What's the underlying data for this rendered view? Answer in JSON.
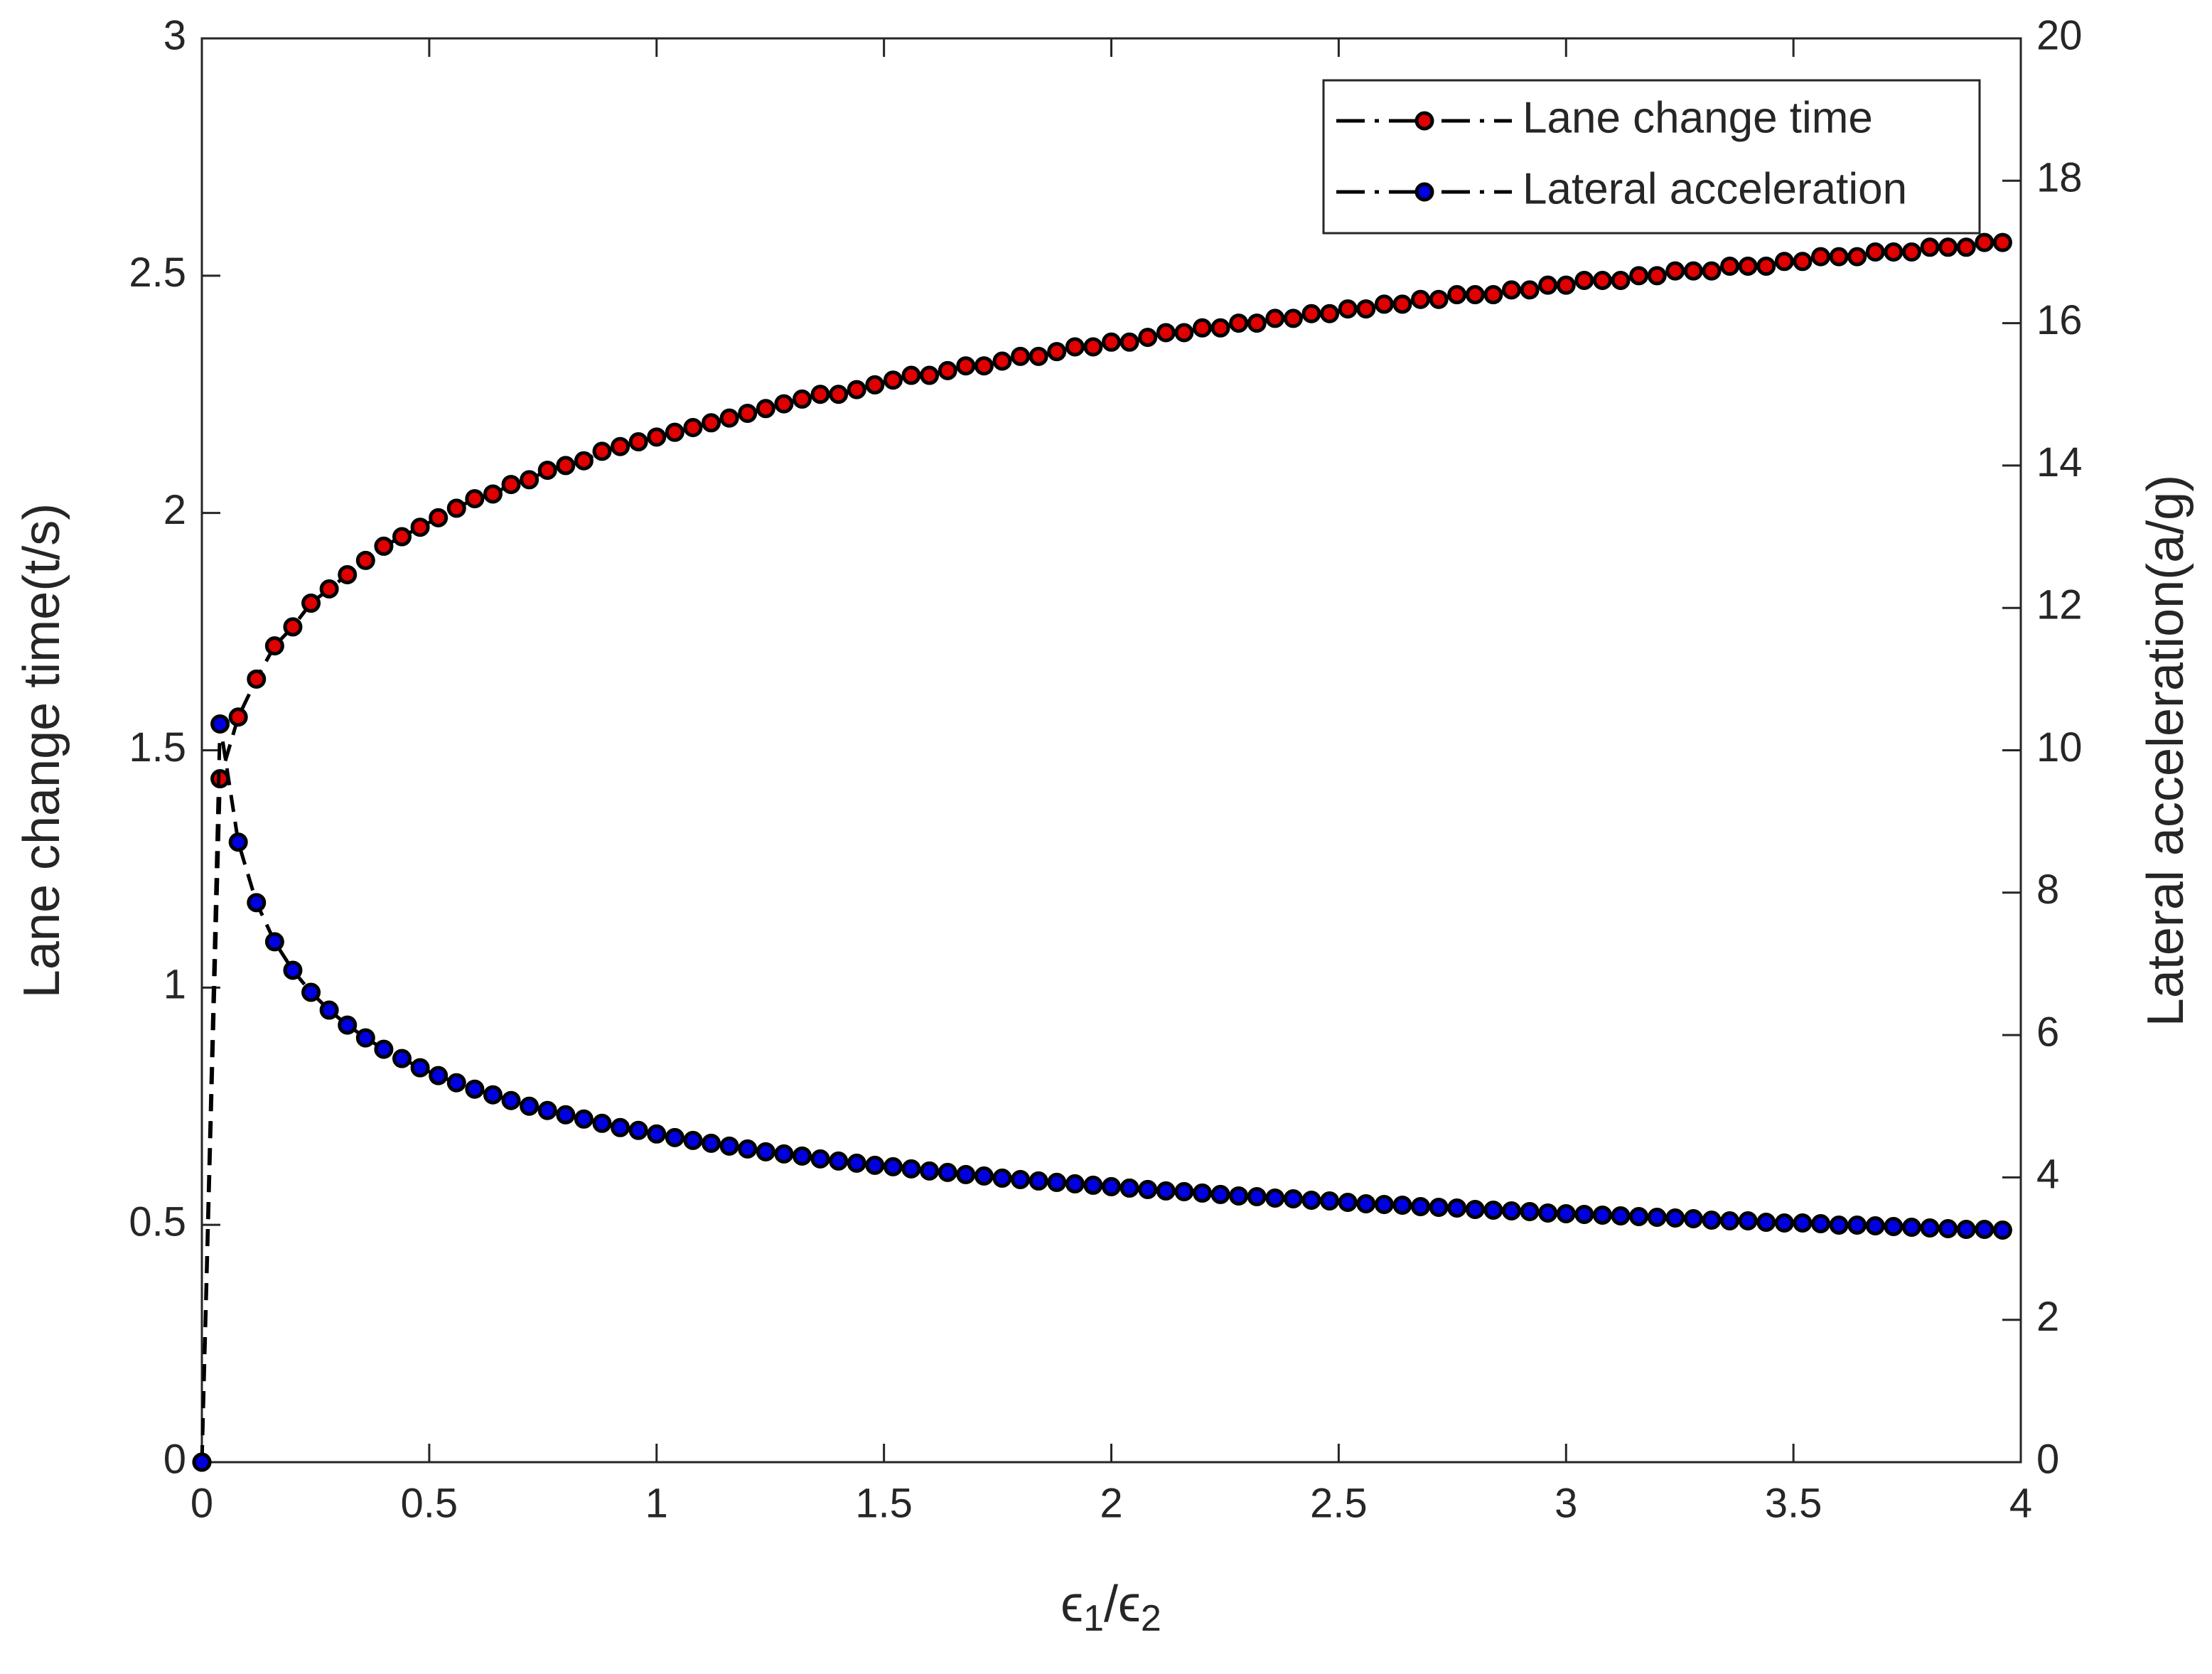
{
  "chart_data": {
    "type": "line",
    "xlabel": [
      "ϵ",
      "1",
      "/ϵ",
      "2"
    ],
    "ylabel": "Lane change time(t/s)",
    "y2label": "Lateral acceleration(a/g)",
    "x": [
      0,
      0.04,
      0.08,
      0.12,
      0.16,
      0.2,
      0.24,
      0.28,
      0.32,
      0.36,
      0.4,
      0.44,
      0.48,
      0.52,
      0.56,
      0.6,
      0.64,
      0.68,
      0.72,
      0.76,
      0.8,
      0.84,
      0.88,
      0.92,
      0.96,
      1,
      1.04,
      1.08,
      1.12,
      1.16,
      1.2,
      1.24,
      1.28,
      1.32,
      1.36,
      1.4,
      1.44,
      1.48,
      1.52,
      1.56,
      1.6,
      1.64,
      1.68,
      1.72,
      1.76,
      1.8,
      1.84,
      1.88,
      1.92,
      1.96,
      2,
      2.04,
      2.08,
      2.12,
      2.16,
      2.2,
      2.24,
      2.28,
      2.32,
      2.36,
      2.4,
      2.44,
      2.48,
      2.52,
      2.56,
      2.6,
      2.64,
      2.68,
      2.72,
      2.76,
      2.8,
      2.84,
      2.88,
      2.92,
      2.96,
      3,
      3.04,
      3.08,
      3.12,
      3.16,
      3.2,
      3.24,
      3.28,
      3.32,
      3.36,
      3.4,
      3.44,
      3.48,
      3.52,
      3.56,
      3.6,
      3.64,
      3.68,
      3.72,
      3.76,
      3.8,
      3.84,
      3.88,
      3.92,
      3.96
    ],
    "line_color": "#000000",
    "series": [
      {
        "name": "Lane change time",
        "color": "#e00000",
        "values": [
          0,
          1.44,
          1.57,
          1.65,
          1.72,
          1.76,
          1.81,
          1.84,
          1.87,
          1.9,
          1.93,
          1.95,
          1.97,
          1.99,
          2.01,
          2.03,
          2.04,
          2.06,
          2.07,
          2.09,
          2.1,
          2.11,
          2.13,
          2.14,
          2.15,
          2.16,
          2.17,
          2.18,
          2.19,
          2.2,
          2.21,
          2.22,
          2.23,
          2.24,
          2.25,
          2.25,
          2.26,
          2.27,
          2.28,
          2.29,
          2.29,
          2.3,
          2.31,
          2.31,
          2.32,
          2.33,
          2.33,
          2.34,
          2.35,
          2.35,
          2.36,
          2.36,
          2.37,
          2.38,
          2.38,
          2.39,
          2.39,
          2.4,
          2.4,
          2.41,
          2.41,
          2.42,
          2.42,
          2.43,
          2.43,
          2.44,
          2.44,
          2.45,
          2.45,
          2.46,
          2.46,
          2.46,
          2.47,
          2.47,
          2.48,
          2.48,
          2.49,
          2.49,
          2.49,
          2.5,
          2.5,
          2.51,
          2.51,
          2.51,
          2.52,
          2.52,
          2.52,
          2.53,
          2.53,
          2.54,
          2.54,
          2.54,
          2.55,
          2.55,
          2.55,
          2.56,
          2.56,
          2.56,
          2.57,
          2.57
        ]
      },
      {
        "name": "Lateral acceleration",
        "color": "#0000e0",
        "axis": "y2",
        "values": [
          0,
          10.37,
          8.71,
          7.86,
          7.31,
          6.91,
          6.6,
          6.35,
          6.14,
          5.96,
          5.8,
          5.67,
          5.54,
          5.43,
          5.33,
          5.24,
          5.16,
          5.08,
          5,
          4.94,
          4.88,
          4.82,
          4.76,
          4.7,
          4.66,
          4.61,
          4.56,
          4.52,
          4.48,
          4.44,
          4.4,
          4.36,
          4.33,
          4.3,
          4.26,
          4.23,
          4.2,
          4.17,
          4.15,
          4.12,
          4.09,
          4.07,
          4.04,
          4.02,
          3.99,
          3.97,
          3.95,
          3.93,
          3.91,
          3.89,
          3.87,
          3.85,
          3.83,
          3.81,
          3.8,
          3.78,
          3.76,
          3.74,
          3.73,
          3.71,
          3.7,
          3.68,
          3.67,
          3.65,
          3.63,
          3.62,
          3.61,
          3.59,
          3.58,
          3.57,
          3.55,
          3.54,
          3.53,
          3.52,
          3.5,
          3.49,
          3.48,
          3.47,
          3.46,
          3.45,
          3.44,
          3.43,
          3.42,
          3.4,
          3.39,
          3.39,
          3.37,
          3.36,
          3.36,
          3.35,
          3.33,
          3.33,
          3.32,
          3.31,
          3.3,
          3.29,
          3.28,
          3.27,
          3.27,
          3.26
        ]
      }
    ],
    "xlim": [
      0,
      4
    ],
    "xticks": [
      0,
      0.5,
      1,
      1.5,
      2,
      2.5,
      3,
      3.5,
      4
    ],
    "ylim": [
      0,
      3
    ],
    "yticks": [
      0,
      0.5,
      1,
      1.5,
      2,
      2.5,
      3
    ],
    "y2lim": [
      0,
      20
    ],
    "y2ticks": [
      0,
      2,
      4,
      6,
      8,
      10,
      12,
      14,
      16,
      18,
      20
    ],
    "grid": false,
    "legend": "top-right"
  }
}
